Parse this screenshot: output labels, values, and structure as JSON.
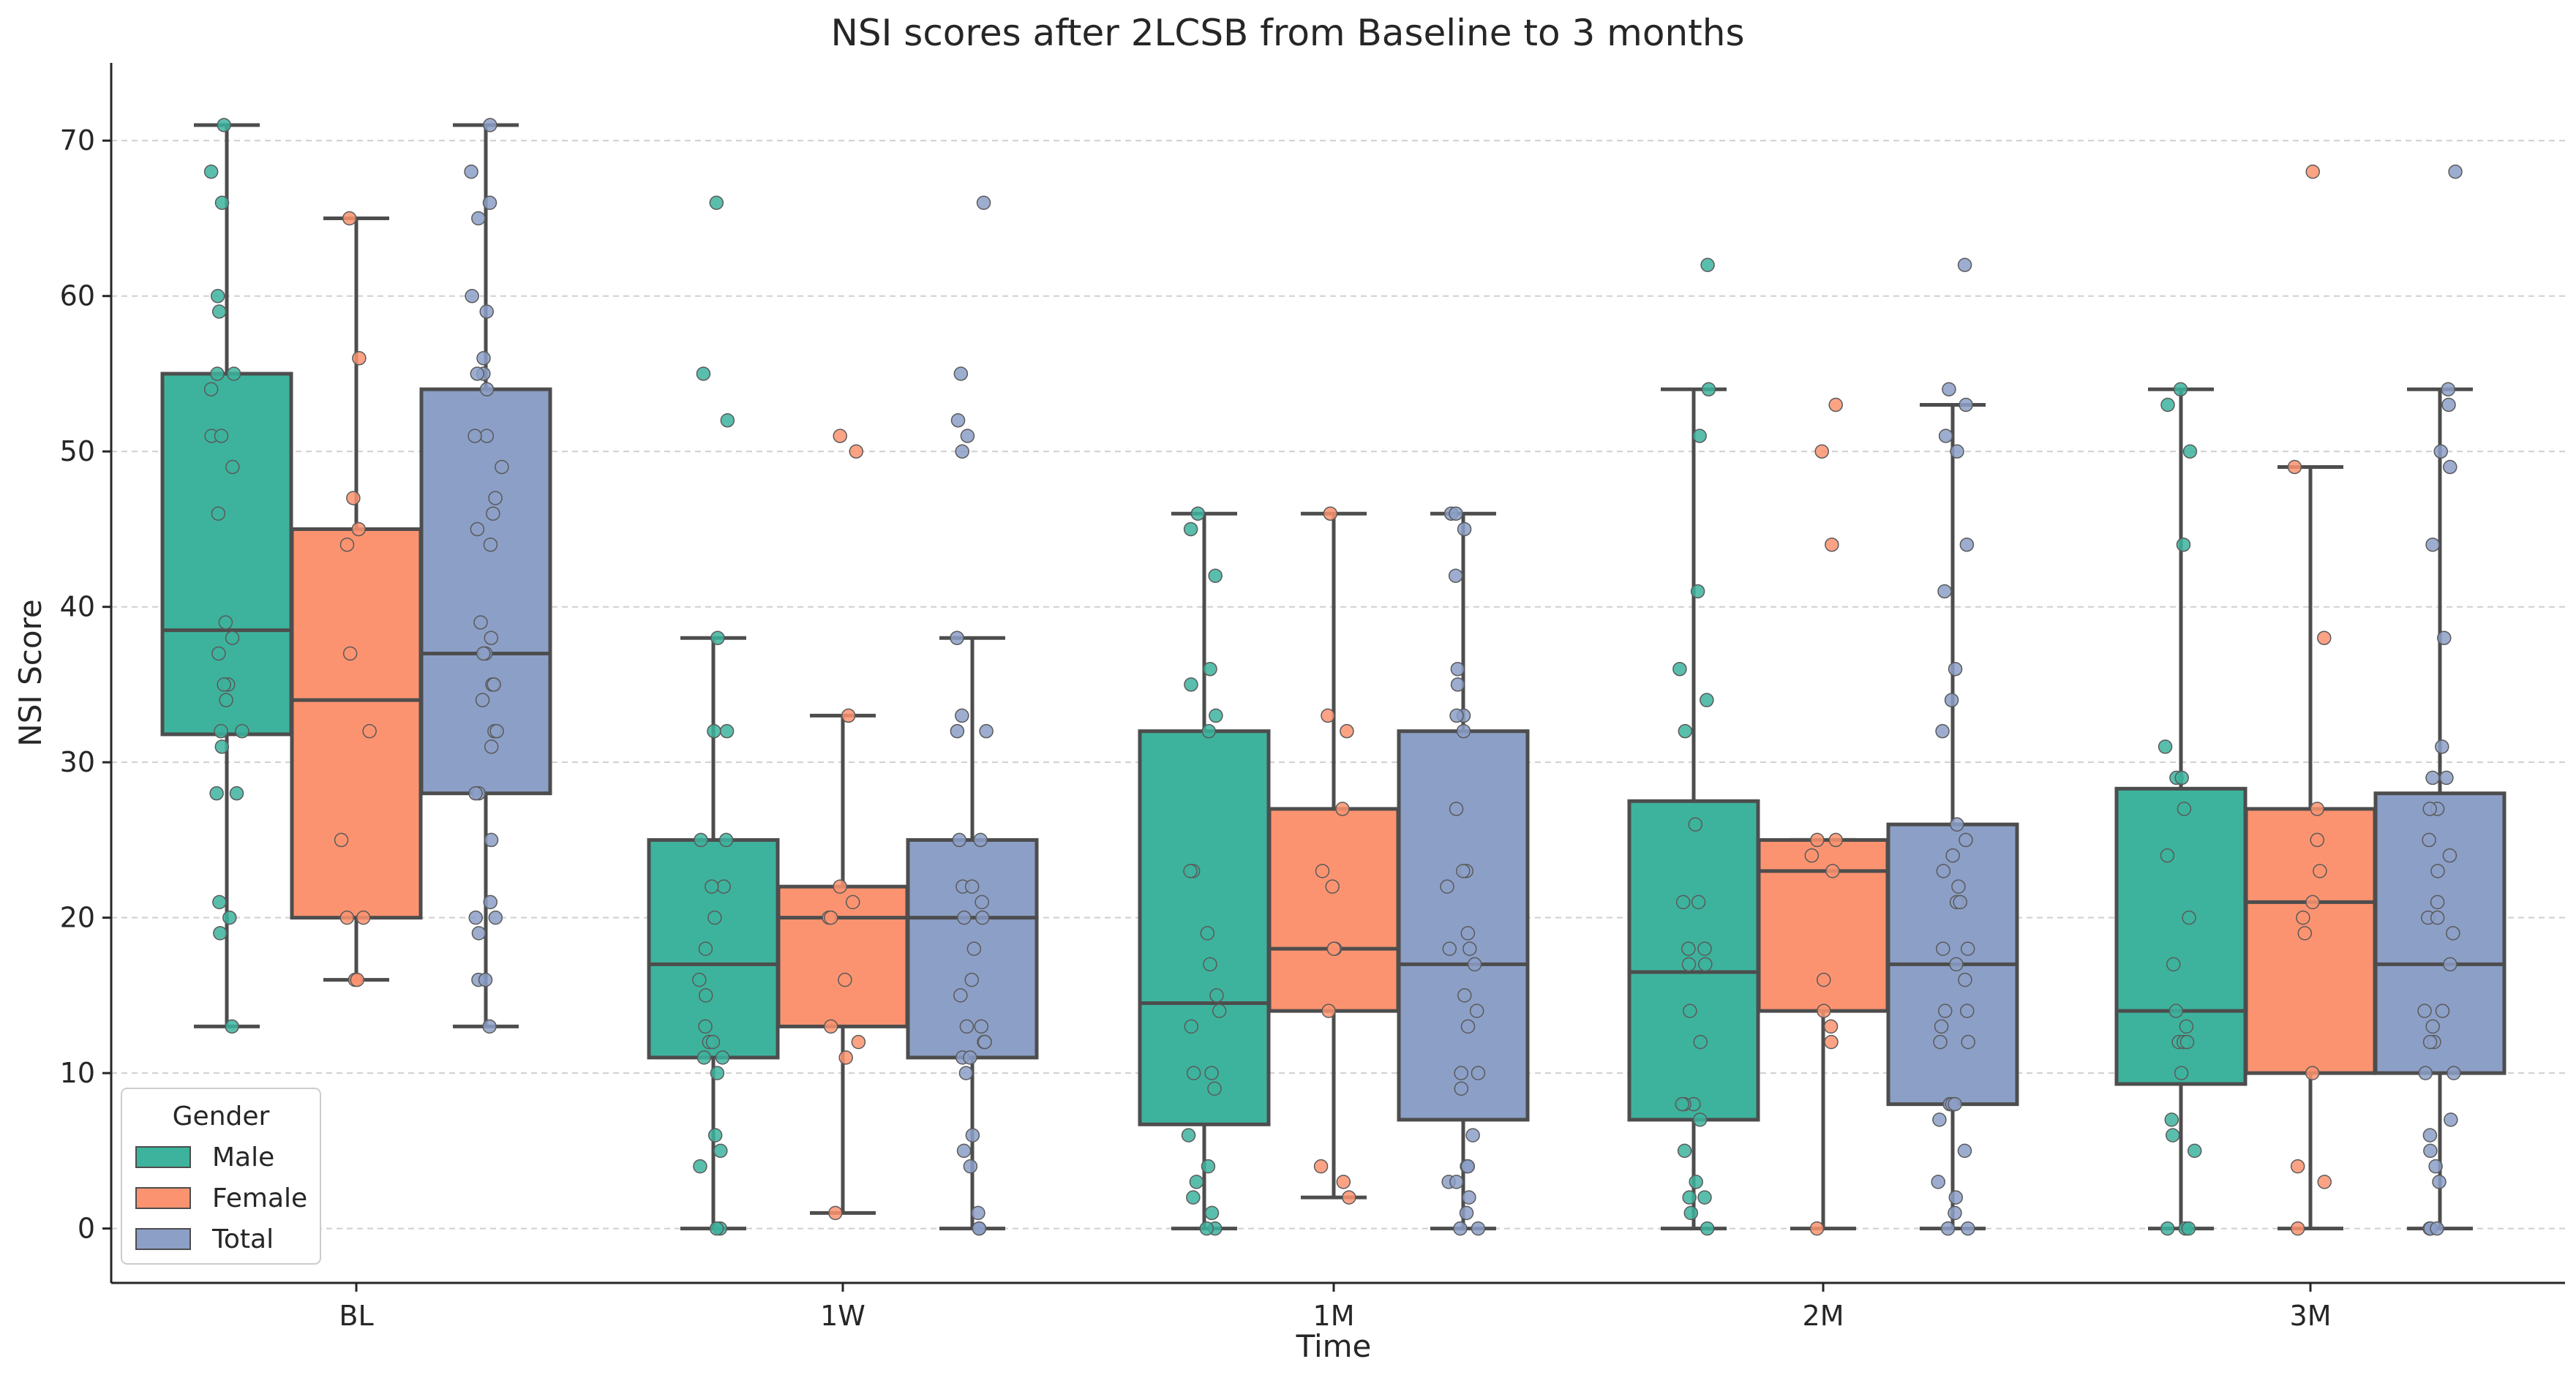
{
  "chart_data": {
    "type": "box",
    "title": "NSI scores after 2LCSB from Baseline to 3 months",
    "xlabel": "Time",
    "ylabel": "NSI Score",
    "ylim": [
      -3.5,
      75
    ],
    "yticks": [
      0,
      10,
      20,
      30,
      40,
      50,
      60,
      70
    ],
    "categories": [
      "BL",
      "1W",
      "1M",
      "2M",
      "3M"
    ],
    "legend": {
      "title": "Gender",
      "position": "bottom-left",
      "entries": [
        "Male",
        "Female",
        "Total"
      ]
    },
    "colors": {
      "Male": "#3db39d",
      "Female": "#fc9370",
      "Total": "#8c9fc7",
      "box_edge": "#4d4d4d",
      "grid": "#cfcfcf"
    },
    "grid": true,
    "series": [
      {
        "name": "Male",
        "boxes": [
          {
            "category": "BL",
            "whisker_low": 13,
            "q1": 31.8,
            "median": 38.5,
            "q3": 55,
            "whisker_high": 71,
            "points": [
              71,
              68,
              66,
              60,
              59,
              55,
              55,
              54,
              51,
              51,
              49,
              46,
              39,
              38,
              37,
              35,
              35,
              34,
              32,
              32,
              31,
              28,
              28,
              21,
              20,
              19,
              13
            ]
          },
          {
            "category": "1W",
            "whisker_low": 0,
            "q1": 11,
            "median": 17,
            "q3": 25,
            "whisker_high": 38,
            "points": [
              66,
              55,
              52,
              38,
              32,
              32,
              25,
              25,
              22,
              22,
              20,
              18,
              16,
              15,
              13,
              12,
              12,
              11,
              11,
              10,
              6,
              5,
              4,
              0,
              0
            ]
          },
          {
            "category": "1M",
            "whisker_low": 0,
            "q1": 6.7,
            "median": 14.5,
            "q3": 32,
            "whisker_high": 46,
            "points": [
              46,
              45,
              42,
              36,
              35,
              33,
              32,
              23,
              23,
              19,
              17,
              15,
              14,
              13,
              10,
              10,
              9,
              6,
              4,
              3,
              2,
              1,
              0,
              0
            ]
          },
          {
            "category": "2M",
            "whisker_low": 0,
            "q1": 7,
            "median": 16.5,
            "q3": 27.5,
            "whisker_high": 54,
            "points": [
              62,
              54,
              51,
              41,
              36,
              34,
              32,
              26,
              21,
              21,
              18,
              18,
              17,
              17,
              14,
              12,
              8,
              8,
              8,
              7,
              5,
              3,
              2,
              2,
              1,
              0
            ]
          },
          {
            "category": "3M",
            "whisker_low": 0,
            "q1": 9.3,
            "median": 14,
            "q3": 28.3,
            "whisker_high": 54,
            "points": [
              54,
              53,
              50,
              44,
              31,
              29,
              29,
              27,
              24,
              20,
              17,
              14,
              13,
              12,
              12,
              12,
              10,
              7,
              6,
              5,
              0,
              0,
              0
            ]
          }
        ]
      },
      {
        "name": "Female",
        "boxes": [
          {
            "category": "BL",
            "whisker_low": 16,
            "q1": 20,
            "median": 34,
            "q3": 45,
            "whisker_high": 65,
            "points": [
              65,
              56,
              47,
              45,
              44,
              37,
              32,
              25,
              20,
              20,
              16,
              16
            ]
          },
          {
            "category": "1W",
            "whisker_low": 1,
            "q1": 13,
            "median": 20,
            "q3": 22,
            "whisker_high": 33,
            "points": [
              51,
              50,
              33,
              22,
              21,
              20,
              20,
              16,
              13,
              12,
              11,
              1
            ]
          },
          {
            "category": "1M",
            "whisker_low": 2,
            "q1": 14,
            "median": 18,
            "q3": 27,
            "whisker_high": 46,
            "points": [
              46,
              33,
              32,
              27,
              23,
              22,
              18,
              18,
              14,
              4,
              3,
              2
            ]
          },
          {
            "category": "2M",
            "whisker_low": 0,
            "q1": 14,
            "median": 23,
            "q3": 25,
            "whisker_high": 25,
            "points": [
              53,
              50,
              44,
              25,
              25,
              24,
              23,
              16,
              14,
              13,
              12,
              0
            ]
          },
          {
            "category": "3M",
            "whisker_low": 0,
            "q1": 10,
            "median": 21,
            "q3": 27,
            "whisker_high": 49,
            "points": [
              68,
              49,
              38,
              27,
              25,
              23,
              21,
              20,
              19,
              10,
              4,
              3,
              0
            ]
          }
        ]
      },
      {
        "name": "Total",
        "boxes": [
          {
            "category": "BL",
            "whisker_low": 13,
            "q1": 28,
            "median": 37,
            "q3": 54,
            "whisker_high": 71,
            "points": [
              71,
              68,
              66,
              65,
              60,
              59,
              56,
              55,
              55,
              54,
              51,
              51,
              49,
              47,
              46,
              45,
              44,
              39,
              38,
              37,
              37,
              35,
              35,
              34,
              32,
              32,
              31,
              28,
              28,
              25,
              21,
              20,
              20,
              19,
              16,
              16,
              13
            ]
          },
          {
            "category": "1W",
            "whisker_low": 0,
            "q1": 11,
            "median": 20,
            "q3": 25,
            "whisker_high": 38,
            "points": [
              66,
              55,
              52,
              51,
              50,
              38,
              33,
              32,
              32,
              25,
              25,
              22,
              22,
              21,
              20,
              20,
              18,
              16,
              15,
              13,
              13,
              12,
              12,
              11,
              11,
              10,
              6,
              5,
              4,
              1,
              0,
              0
            ]
          },
          {
            "category": "1M",
            "whisker_low": 0,
            "q1": 7,
            "median": 17,
            "q3": 32,
            "whisker_high": 46,
            "points": [
              46,
              46,
              45,
              42,
              36,
              35,
              33,
              33,
              32,
              27,
              23,
              23,
              22,
              19,
              18,
              18,
              17,
              15,
              14,
              13,
              10,
              10,
              9,
              6,
              4,
              4,
              3,
              3,
              2,
              1,
              0,
              0
            ]
          },
          {
            "category": "2M",
            "whisker_low": 0,
            "q1": 8,
            "median": 17,
            "q3": 26,
            "whisker_high": 53,
            "points": [
              62,
              54,
              53,
              51,
              50,
              44,
              41,
              36,
              34,
              32,
              26,
              25,
              24,
              23,
              22,
              21,
              21,
              18,
              18,
              17,
              16,
              14,
              14,
              13,
              12,
              12,
              8,
              8,
              8,
              7,
              5,
              3,
              2,
              1,
              0,
              0
            ]
          },
          {
            "category": "3M",
            "whisker_low": 0,
            "q1": 10,
            "median": 17,
            "q3": 28,
            "whisker_high": 54,
            "points": [
              68,
              54,
              53,
              50,
              49,
              44,
              38,
              31,
              29,
              29,
              27,
              27,
              25,
              24,
              23,
              21,
              20,
              20,
              19,
              17,
              14,
              14,
              13,
              12,
              12,
              10,
              10,
              7,
              6,
              5,
              4,
              3,
              0,
              0,
              0,
              0
            ]
          }
        ]
      }
    ]
  }
}
